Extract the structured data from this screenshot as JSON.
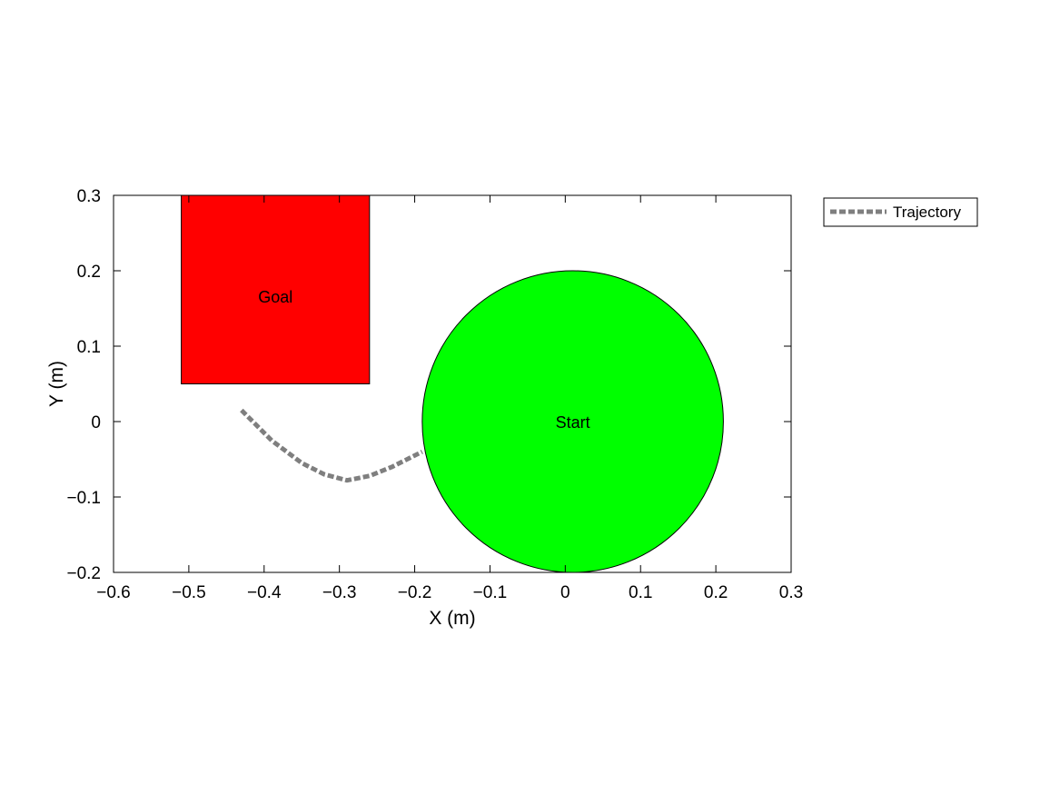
{
  "chart_data": {
    "type": "scatter",
    "title": "",
    "xlabel": "X (m)",
    "ylabel": "Y (m)",
    "xlim": [
      -0.6,
      0.3
    ],
    "ylim": [
      -0.2,
      0.3
    ],
    "xticks": [
      -0.6,
      -0.5,
      -0.4,
      -0.3,
      -0.2,
      -0.1,
      0,
      0.1,
      0.2,
      0.3
    ],
    "xtick_labels": [
      "−0.6",
      "−0.5",
      "−0.4",
      "−0.3",
      "−0.2",
      "−0.1",
      "0",
      "0.1",
      "0.2",
      "0.3"
    ],
    "yticks": [
      -0.2,
      -0.1,
      0,
      0.1,
      0.2,
      0.3
    ],
    "ytick_labels": [
      "−0.2",
      "−0.1",
      "0",
      "0.1",
      "0.2",
      "0.3"
    ],
    "grid": false,
    "legend_position": "outside-top-right",
    "goal": {
      "label": "Goal",
      "shape": "rectangle",
      "x_range": [
        -0.51,
        -0.26
      ],
      "y_range": [
        0.05,
        0.3
      ],
      "color": "#ff0000"
    },
    "start": {
      "label": "Start",
      "shape": "circle",
      "center": [
        0.01,
        0.0
      ],
      "radius": 0.2,
      "color": "#00ff00"
    },
    "series": [
      {
        "name": "Trajectory",
        "color": "#7f7f7f",
        "style": "dashed",
        "x": [
          -0.43,
          -0.39,
          -0.35,
          -0.32,
          -0.29,
          -0.26,
          -0.23,
          -0.2,
          -0.19
        ],
        "y": [
          0.015,
          -0.025,
          -0.055,
          -0.07,
          -0.078,
          -0.072,
          -0.06,
          -0.045,
          -0.04
        ]
      }
    ]
  }
}
